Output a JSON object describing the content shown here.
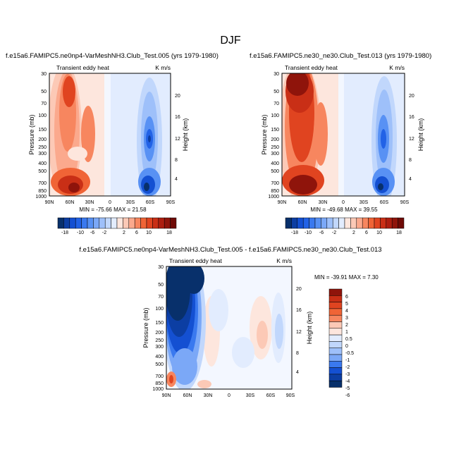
{
  "page_title": "DJF",
  "legend_colors_20": [
    "#08306b",
    "#0c3ea3",
    "#1450d2",
    "#2262e6",
    "#3a79ef",
    "#5891f4",
    "#7ba8f7",
    "#9ec0fa",
    "#c1d7fc",
    "#e2ecfe",
    "#fde6dd",
    "#fcc9b6",
    "#fba98d",
    "#f7865f",
    "#f06436",
    "#e04420",
    "#c92f16",
    "#ad1e10",
    "#8f140b",
    "#6f0a06"
  ],
  "legend_colors_diff": [
    "#08306b",
    "#0c3ea3",
    "#1450d2",
    "#3a79ef",
    "#7ba8f7",
    "#9ec0fa",
    "#c1d7fc",
    "#e2ecfe",
    "#fde6dd",
    "#fcc9b6",
    "#f7865f",
    "#f06436",
    "#e04420",
    "#c92f16",
    "#8f140b"
  ],
  "chart_data": [
    {
      "type": "heatmap",
      "title": "f.e15a6.FAMIPC5.ne0np4-VarMeshNH3.Club_Test.005 (yrs 1979-1980)",
      "left_string": "Transient eddy heat",
      "right_string": "K m/s",
      "ylabel": "Pressure (mb)",
      "ylabel_right": "Height (km)",
      "x_ticks": [
        "90N",
        "60N",
        "30N",
        "0",
        "30S",
        "60S",
        "90S"
      ],
      "y_ticks": [
        "30",
        "50",
        "70",
        "100",
        "150",
        "200",
        "250",
        "300",
        "400",
        "500",
        "700",
        "850",
        "1000"
      ],
      "height_ticks": [
        "20",
        "16",
        "12",
        "8",
        "4"
      ],
      "stats": "MIN = -75.66  MAX =  21.58",
      "colorbar_labels": [
        "-18",
        "-10",
        "-6",
        "-2",
        "2",
        "6",
        "10",
        "18"
      ]
    },
    {
      "type": "heatmap",
      "title": "f.e15a6.FAMIPC5.ne30_ne30.Club_Test.013 (yrs 1979-1980)",
      "left_string": "Transient eddy heat",
      "right_string": "K m/s",
      "ylabel": "Pressure (mb)",
      "ylabel_right": "Height (km)",
      "x_ticks": [
        "90N",
        "60N",
        "30N",
        "0",
        "30S",
        "60S",
        "90S"
      ],
      "y_ticks": [
        "30",
        "50",
        "70",
        "100",
        "150",
        "200",
        "250",
        "300",
        "400",
        "500",
        "700",
        "850",
        "1000"
      ],
      "height_ticks": [
        "20",
        "16",
        "12",
        "8",
        "4"
      ],
      "stats": "MIN = -49.68  MAX =  39.55",
      "colorbar_labels": [
        "-18",
        "-10",
        "-6",
        "-2",
        "2",
        "6",
        "10",
        "18"
      ]
    },
    {
      "type": "heatmap",
      "title": "f.e15a6.FAMIPC5.ne0np4-VarMeshNH3.Club_Test.005 - f.e15a6.FAMIPC5.ne30_ne30.Club_Test.013",
      "left_string": "Transient eddy heat",
      "right_string": "K m/s",
      "ylabel": "Pressure (mb)",
      "ylabel_right": "Height (km)",
      "x_ticks": [
        "90N",
        "60N",
        "30N",
        "0",
        "30S",
        "60S",
        "90S"
      ],
      "y_ticks": [
        "30",
        "50",
        "70",
        "100",
        "150",
        "200",
        "250",
        "300",
        "400",
        "500",
        "700",
        "850",
        "1000"
      ],
      "height_ticks": [
        "20",
        "16",
        "12",
        "8",
        "4"
      ],
      "stats": "MIN = -39.91  MAX =  7.30",
      "colorbar_labels": [
        "6",
        "5",
        "4",
        "3",
        "2",
        "1",
        "0.5",
        "0",
        "-0.5",
        "-1",
        "-2",
        "-3",
        "-4",
        "-5",
        "-6"
      ]
    }
  ]
}
